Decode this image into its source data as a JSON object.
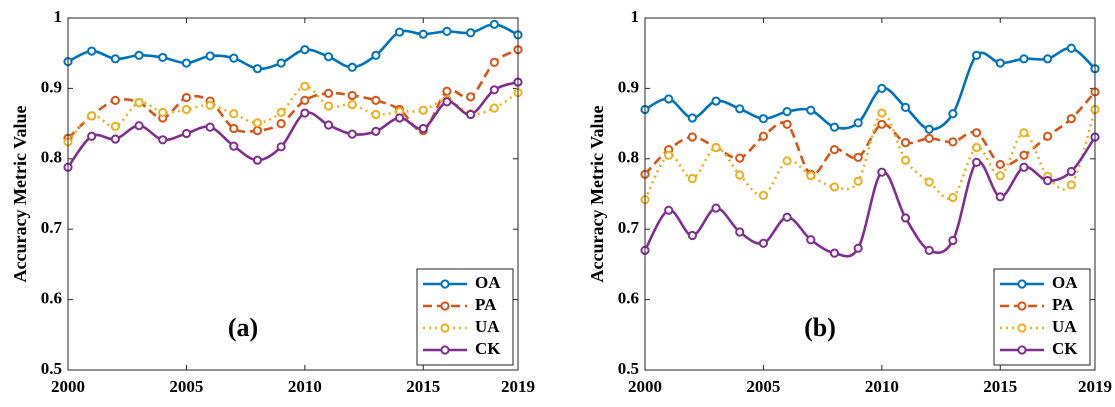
{
  "chart_data": [
    {
      "type": "line",
      "y_label": "Accuracy Metric Value",
      "annotation": "(a)",
      "x": [
        2000,
        2001,
        2002,
        2003,
        2004,
        2005,
        2006,
        2007,
        2008,
        2009,
        2010,
        2011,
        2012,
        2013,
        2014,
        2015,
        2016,
        2017,
        2018,
        2019
      ],
      "xlim": [
        2000,
        2019
      ],
      "xticks": [
        2000,
        2005,
        2010,
        2015,
        2019
      ],
      "ylim": [
        0.5,
        1
      ],
      "yticks": [
        0.5,
        0.6,
        0.7,
        0.8,
        0.9,
        1
      ],
      "legend": "lower right",
      "series": [
        {
          "name": "OA",
          "color": "#0072BD",
          "line_style": "solid",
          "values": [
            0.938,
            0.953,
            0.942,
            0.947,
            0.944,
            0.936,
            0.946,
            0.943,
            0.928,
            0.936,
            0.955,
            0.945,
            0.93,
            0.947,
            0.98,
            0.977,
            0.981,
            0.979,
            0.991,
            0.976
          ]
        },
        {
          "name": "PA",
          "color": "#D95319",
          "line_style": "dashed",
          "values": [
            0.829,
            0.861,
            0.883,
            0.88,
            0.858,
            0.887,
            0.882,
            0.843,
            0.84,
            0.85,
            0.883,
            0.893,
            0.89,
            0.883,
            0.87,
            0.84,
            0.896,
            0.888,
            0.937,
            0.955
          ]
        },
        {
          "name": "UA",
          "color": "#EDB120",
          "line_style": "dotted",
          "values": [
            0.824,
            0.861,
            0.846,
            0.88,
            0.866,
            0.87,
            0.876,
            0.864,
            0.851,
            0.866,
            0.903,
            0.875,
            0.877,
            0.863,
            0.867,
            0.869,
            0.884,
            0.864,
            0.872,
            0.894
          ]
        },
        {
          "name": "CK",
          "color": "#7E2F8E",
          "line_style": "solid",
          "values": [
            0.788,
            0.832,
            0.828,
            0.847,
            0.827,
            0.836,
            0.845,
            0.818,
            0.798,
            0.817,
            0.865,
            0.848,
            0.835,
            0.839,
            0.858,
            0.843,
            0.881,
            0.863,
            0.898,
            0.909
          ]
        }
      ]
    },
    {
      "type": "line",
      "y_label": "Accuracy Metric Value",
      "annotation": "(b)",
      "x": [
        2000,
        2001,
        2002,
        2003,
        2004,
        2005,
        2006,
        2007,
        2008,
        2009,
        2010,
        2011,
        2012,
        2013,
        2014,
        2015,
        2016,
        2017,
        2018,
        2019
      ],
      "xlim": [
        2000,
        2019
      ],
      "xticks": [
        2000,
        2005,
        2010,
        2015,
        2019
      ],
      "ylim": [
        0.5,
        1
      ],
      "yticks": [
        0.5,
        0.6,
        0.7,
        0.8,
        0.9,
        1
      ],
      "legend": "lower right",
      "series": [
        {
          "name": "OA",
          "color": "#0072BD",
          "line_style": "solid",
          "values": [
            0.87,
            0.885,
            0.858,
            0.882,
            0.871,
            0.857,
            0.867,
            0.869,
            0.845,
            0.851,
            0.9,
            0.873,
            0.842,
            0.864,
            0.947,
            0.936,
            0.942,
            0.942,
            0.957,
            0.928
          ]
        },
        {
          "name": "PA",
          "color": "#D95319",
          "line_style": "dashed",
          "values": [
            0.778,
            0.813,
            0.831,
            0.816,
            0.801,
            0.832,
            0.849,
            0.778,
            0.813,
            0.802,
            0.849,
            0.823,
            0.829,
            0.824,
            0.837,
            0.792,
            0.805,
            0.832,
            0.857,
            0.895
          ]
        },
        {
          "name": "UA",
          "color": "#EDB120",
          "line_style": "dotted",
          "values": [
            0.742,
            0.805,
            0.772,
            0.816,
            0.777,
            0.748,
            0.797,
            0.776,
            0.76,
            0.768,
            0.865,
            0.798,
            0.767,
            0.745,
            0.816,
            0.776,
            0.837,
            0.775,
            0.763,
            0.87
          ]
        },
        {
          "name": "CK",
          "color": "#7E2F8E",
          "line_style": "solid",
          "values": [
            0.67,
            0.727,
            0.691,
            0.73,
            0.696,
            0.68,
            0.717,
            0.685,
            0.666,
            0.673,
            0.781,
            0.716,
            0.67,
            0.684,
            0.795,
            0.746,
            0.788,
            0.769,
            0.782,
            0.831
          ]
        }
      ]
    }
  ]
}
